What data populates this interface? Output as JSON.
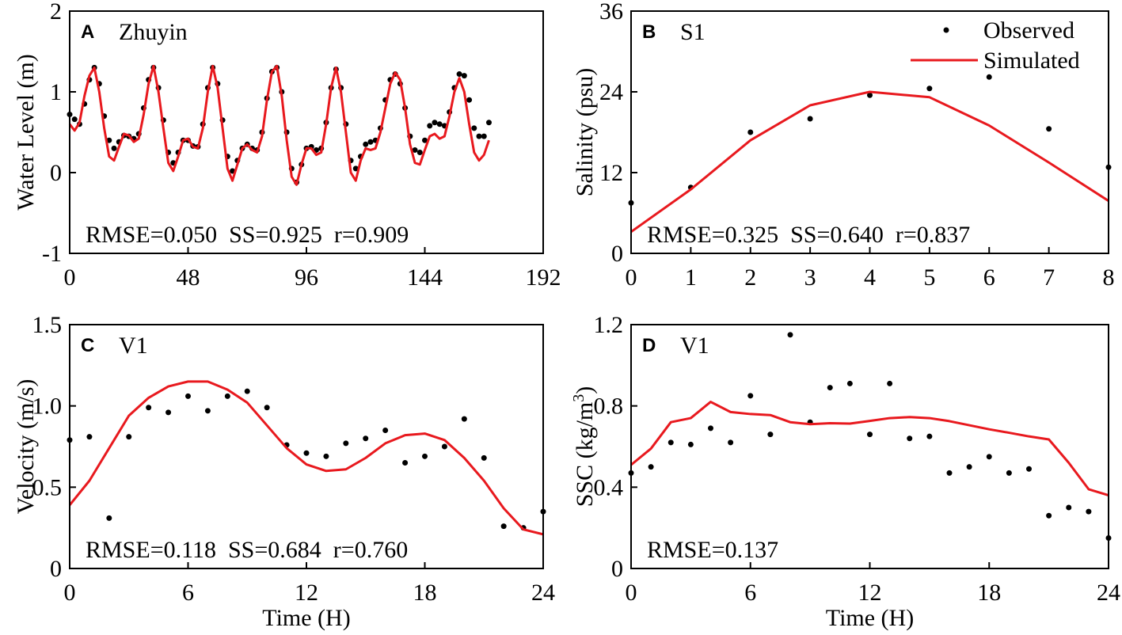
{
  "chart_data": [
    {
      "type": "line",
      "label": "A",
      "station": "Zhuyin",
      "stats": "RMSE=0.050  SS=0.925  r=0.909",
      "ylabel": "Water Level (m)",
      "xlim": [
        0,
        192
      ],
      "xticks": [
        0,
        48,
        96,
        144,
        192
      ],
      "ylim": [
        -1,
        2
      ],
      "yticks": [
        -1,
        0,
        1,
        2
      ],
      "x": [
        0,
        2,
        4,
        6,
        8,
        10,
        12,
        14,
        16,
        18,
        20,
        22,
        24,
        26,
        28,
        30,
        32,
        34,
        36,
        38,
        40,
        42,
        44,
        46,
        48,
        50,
        52,
        54,
        56,
        58,
        60,
        62,
        64,
        66,
        68,
        70,
        72,
        74,
        76,
        78,
        80,
        82,
        84,
        86,
        88,
        90,
        92,
        94,
        96,
        98,
        100,
        102,
        104,
        106,
        108,
        110,
        112,
        114,
        116,
        118,
        120,
        122,
        124,
        126,
        128,
        130,
        132,
        134,
        136,
        138,
        140,
        142,
        144,
        146,
        148,
        150,
        152,
        154,
        156,
        158,
        160,
        162,
        164,
        166,
        168,
        170
      ],
      "series": [
        {
          "mode": "markers",
          "color": "#000000",
          "values": [
            0.72,
            0.66,
            0.6,
            0.85,
            1.15,
            1.3,
            1.1,
            0.7,
            0.4,
            0.3,
            0.38,
            0.46,
            0.45,
            0.42,
            0.48,
            0.8,
            1.15,
            1.3,
            1.05,
            0.65,
            0.25,
            0.12,
            0.25,
            0.4,
            0.4,
            0.33,
            0.32,
            0.6,
            1.05,
            1.3,
            1.1,
            0.65,
            0.2,
            0.02,
            0.15,
            0.3,
            0.35,
            0.3,
            0.28,
            0.5,
            0.92,
            1.25,
            1.3,
            1.0,
            0.5,
            0.05,
            -0.12,
            0.1,
            0.3,
            0.32,
            0.28,
            0.3,
            0.62,
            1.05,
            1.28,
            1.05,
            0.6,
            0.15,
            0.05,
            0.2,
            0.35,
            0.38,
            0.4,
            0.55,
            0.9,
            1.15,
            1.22,
            1.1,
            0.8,
            0.45,
            0.28,
            0.25,
            0.4,
            0.58,
            0.62,
            0.6,
            0.58,
            0.75,
            1.05,
            1.22,
            1.2,
            0.9,
            0.55,
            0.45,
            0.45,
            0.62
          ]
        },
        {
          "mode": "lines",
          "color": "#e8191e",
          "values": [
            0.6,
            0.52,
            0.62,
            0.95,
            1.2,
            1.3,
            1.0,
            0.55,
            0.2,
            0.15,
            0.32,
            0.48,
            0.46,
            0.38,
            0.42,
            0.72,
            1.1,
            1.32,
            1.0,
            0.55,
            0.12,
            0.02,
            0.2,
            0.4,
            0.42,
            0.32,
            0.3,
            0.55,
            1.0,
            1.32,
            1.05,
            0.55,
            0.05,
            -0.1,
            0.1,
            0.3,
            0.35,
            0.28,
            0.25,
            0.45,
            0.9,
            1.25,
            1.32,
            0.95,
            0.4,
            -0.05,
            -0.15,
            0.1,
            0.3,
            0.3,
            0.22,
            0.25,
            0.6,
            1.05,
            1.3,
            1.0,
            0.5,
            0.0,
            -0.1,
            0.15,
            0.3,
            0.28,
            0.3,
            0.5,
            0.8,
            1.1,
            1.24,
            1.15,
            0.8,
            0.35,
            0.12,
            0.1,
            0.28,
            0.45,
            0.48,
            0.42,
            0.45,
            0.7,
            1.0,
            1.17,
            1.0,
            0.6,
            0.25,
            0.15,
            0.22,
            0.4
          ]
        }
      ]
    },
    {
      "type": "line",
      "label": "B",
      "station": "S1",
      "stats": "RMSE=0.325  SS=0.640  r=0.837",
      "ylabel": "Salinity (psu)",
      "legend": "upper right",
      "xlim": [
        0,
        8
      ],
      "xticks": [
        0,
        1,
        2,
        3,
        4,
        5,
        6,
        7,
        8
      ],
      "ylim": [
        0,
        36
      ],
      "yticks": [
        0,
        12,
        24,
        36
      ],
      "x": [
        0,
        1,
        2,
        3,
        4,
        5,
        6,
        7,
        8
      ],
      "series": [
        {
          "name": "Observed",
          "mode": "markers",
          "color": "#000000",
          "values": [
            7.5,
            9.8,
            18,
            20,
            23.5,
            24.5,
            26.2,
            18.5,
            12.8
          ]
        },
        {
          "name": "Simulated",
          "mode": "lines",
          "color": "#e8191e",
          "values": [
            3.2,
            9.5,
            16.8,
            22,
            24,
            23.2,
            19,
            13.5,
            7.8
          ]
        }
      ]
    },
    {
      "type": "line",
      "label": "C",
      "station": "V1",
      "stats": "RMSE=0.118  SS=0.684  r=0.760",
      "ylabel": "Velocity (m/s)",
      "xlabel": "Time (H)",
      "xlim": [
        0,
        24
      ],
      "xticks": [
        0,
        6,
        12,
        18,
        24
      ],
      "ylim": [
        0,
        1.5
      ],
      "yticks": [
        0,
        0.5,
        {
          "value": 1,
          "label": "1.0"
        },
        1.5
      ],
      "x": [
        0,
        1,
        2,
        3,
        4,
        5,
        6,
        7,
        8,
        9,
        10,
        11,
        12,
        13,
        14,
        15,
        16,
        17,
        18,
        19,
        20,
        21,
        22,
        23,
        24
      ],
      "series": [
        {
          "mode": "markers",
          "color": "#000000",
          "values": [
            0.79,
            0.81,
            0.31,
            0.81,
            0.99,
            0.96,
            1.06,
            0.97,
            1.06,
            1.09,
            0.99,
            0.76,
            0.71,
            0.69,
            0.77,
            0.8,
            0.85,
            0.65,
            0.69,
            0.75,
            0.92,
            0.68,
            0.26,
            0.25,
            0.35
          ]
        },
        {
          "mode": "lines",
          "color": "#e8191e",
          "values": [
            0.39,
            0.54,
            0.74,
            0.94,
            1.05,
            1.12,
            1.15,
            1.15,
            1.1,
            1.02,
            0.88,
            0.74,
            0.64,
            0.6,
            0.61,
            0.68,
            0.77,
            0.82,
            0.83,
            0.79,
            0.68,
            0.54,
            0.37,
            0.24,
            0.21
          ]
        }
      ]
    },
    {
      "type": "line",
      "label": "D",
      "station": "V1",
      "stats": "RMSE=0.137",
      "ylabel": [
        "SSC (kg/m",
        "3",
        ")"
      ],
      "xlabel": "Time (H)",
      "xlim": [
        0,
        24
      ],
      "xticks": [
        0,
        6,
        12,
        18,
        24
      ],
      "ylim": [
        0,
        1.2
      ],
      "yticks": [
        0,
        0.4,
        0.8,
        1.2
      ],
      "x": [
        0,
        1,
        2,
        3,
        4,
        5,
        6,
        7,
        8,
        9,
        10,
        11,
        12,
        13,
        14,
        15,
        16,
        17,
        18,
        19,
        20,
        21,
        22,
        23,
        24
      ],
      "series": [
        {
          "mode": "markers",
          "color": "#000000",
          "values": [
            0.47,
            0.5,
            0.62,
            0.61,
            0.69,
            0.62,
            0.85,
            0.66,
            1.15,
            0.72,
            0.89,
            0.91,
            0.66,
            0.91,
            0.64,
            0.65,
            0.47,
            0.5,
            0.55,
            0.47,
            0.49,
            0.26,
            0.3,
            0.28,
            0.15
          ]
        },
        {
          "mode": "lines",
          "color": "#e8191e",
          "values": [
            0.51,
            0.59,
            0.72,
            0.74,
            0.82,
            0.77,
            0.76,
            0.755,
            0.72,
            0.71,
            0.715,
            0.713,
            0.726,
            0.74,
            0.745,
            0.74,
            0.725,
            0.705,
            0.685,
            0.668,
            0.65,
            0.635,
            0.52,
            0.39,
            0.36
          ]
        }
      ]
    }
  ]
}
